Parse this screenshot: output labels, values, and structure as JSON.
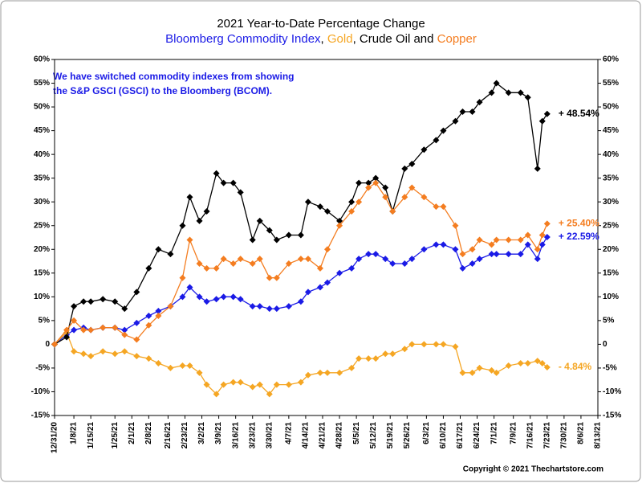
{
  "chart_data": {
    "type": "line",
    "title": "2021 Year-to-Date Percentage Change",
    "subtitle_separators": [
      ", ",
      ", ",
      " and "
    ],
    "annotation": [
      "We have switched commodity indexes from showing",
      "the S&P GSCI (GSCI) to the Bloomberg (BCOM)."
    ],
    "annotation_color": "#1a1ae6",
    "copyright": "Copyright © 2021 Thechartstore.com",
    "x": [
      "12/31/20",
      "1/5/21",
      "1/8/21",
      "1/12/21",
      "1/15/21",
      "1/20/21",
      "1/25/21",
      "1/29/21",
      "2/3/21",
      "2/8/21",
      "2/12/21",
      "2/17/21",
      "2/22/21",
      "2/25/21",
      "3/1/21",
      "3/4/21",
      "3/8/21",
      "3/11/21",
      "3/15/21",
      "3/18/21",
      "3/23/21",
      "3/26/21",
      "3/30/21",
      "4/2/21",
      "4/7/21",
      "4/12/21",
      "4/15/21",
      "4/20/21",
      "4/23/21",
      "4/28/21",
      "5/3/21",
      "5/6/21",
      "5/10/21",
      "5/13/21",
      "5/17/21",
      "5/20/21",
      "5/25/21",
      "5/28/21",
      "6/2/21",
      "6/7/21",
      "6/10/21",
      "6/15/21",
      "6/18/21",
      "6/22/21",
      "6/25/21",
      "6/30/21",
      "7/2/21",
      "7/7/21",
      "7/12/21",
      "7/15/21",
      "7/19/21",
      "7/21/21",
      "7/23/21"
    ],
    "series": [
      {
        "name": "Bloomberg Commodity Index",
        "color": "#1a1ae6",
        "end_label": "+ 22.59%",
        "values": [
          0,
          2,
          3,
          3.5,
          3,
          3.5,
          3.5,
          3,
          4.5,
          6,
          7,
          8,
          10,
          12,
          10,
          9,
          9.5,
          10,
          10,
          9.5,
          8,
          8,
          7.5,
          7.5,
          8,
          9,
          11,
          12,
          13,
          15,
          16,
          18,
          19,
          19,
          18,
          17,
          17,
          18,
          20,
          21,
          21,
          20,
          16,
          17,
          18,
          19,
          19,
          19,
          19,
          21,
          18,
          21,
          22.59
        ]
      },
      {
        "name": "Gold",
        "color": "#f5a623",
        "end_label": "- 4.84%",
        "values": [
          0,
          2.5,
          -1.5,
          -2,
          -2.5,
          -1.5,
          -2,
          -1.5,
          -2.5,
          -3,
          -4,
          -5,
          -4.5,
          -4.5,
          -6,
          -8.5,
          -10.5,
          -8.5,
          -8,
          -8,
          -9,
          -8.5,
          -10.5,
          -8.5,
          -8.5,
          -8,
          -6.5,
          -6,
          -6,
          -6,
          -5,
          -3,
          -3,
          -3,
          -2,
          -2,
          -1,
          0,
          0,
          0,
          0,
          -0.5,
          -6,
          -6,
          -5,
          -5.5,
          -6,
          -4.5,
          -4,
          -4,
          -3.5,
          -4,
          -4.84
        ]
      },
      {
        "name": "Crude Oil",
        "color": "#000000",
        "end_label": "+ 48.54%",
        "values": [
          0,
          1.5,
          8,
          9,
          9,
          9.5,
          9,
          7.5,
          11,
          16,
          20,
          19,
          25,
          31,
          26,
          28,
          36,
          34,
          34,
          32,
          22,
          26,
          24,
          22,
          23,
          23,
          30,
          29,
          28,
          26,
          30,
          34,
          34,
          35,
          33,
          28,
          37,
          38,
          41,
          43,
          45,
          47,
          49,
          49,
          51,
          53,
          55,
          53,
          53,
          52,
          37,
          47,
          48.54
        ]
      },
      {
        "name": "Copper",
        "color": "#f47d20",
        "end_label": "+ 25.40%",
        "values": [
          0,
          3,
          5,
          3,
          3,
          3.5,
          3.5,
          2,
          1,
          4,
          6,
          8,
          14,
          22,
          17,
          16,
          16,
          18,
          17,
          18,
          17,
          18,
          14,
          14,
          17,
          18,
          18,
          16,
          20,
          25,
          28,
          30,
          33,
          34,
          31,
          28,
          31,
          33,
          31,
          29,
          29,
          25,
          19,
          20,
          22,
          21,
          22,
          22,
          22,
          23,
          20,
          23,
          25.4
        ]
      }
    ],
    "xticks": [
      "12/31/20",
      "1/8/21",
      "1/15/21",
      "1/25/21",
      "2/1/21",
      "2/8/21",
      "2/16/21",
      "2/23/21",
      "3/2/21",
      "3/9/21",
      "3/16/21",
      "3/23/21",
      "3/30/21",
      "4/7/21",
      "4/14/21",
      "4/21/21",
      "4/28/21",
      "5/5/21",
      "5/12/21",
      "5/19/21",
      "5/26/21",
      "6/3/21",
      "6/10/21",
      "6/17/21",
      "6/24/21",
      "7/1/21",
      "7/9/21",
      "7/16/21",
      "7/23/21",
      "7/30/21",
      "8/6/21",
      "8/13/21"
    ],
    "xlim": [
      "12/31/20",
      "8/13/21"
    ],
    "ylim": [
      -15,
      60
    ],
    "yticks": [
      {
        "value": -15,
        "label": "-15%"
      },
      {
        "value": -10,
        "label": "-10%"
      },
      {
        "value": -5,
        "label": "-5%"
      },
      0,
      {
        "value": 5,
        "label": "5%"
      },
      {
        "value": 10,
        "label": "10%"
      },
      {
        "value": 15,
        "label": "15%"
      },
      {
        "value": 20,
        "label": "20%"
      },
      {
        "value": 25,
        "label": "25%"
      },
      {
        "value": 30,
        "label": "30%"
      },
      {
        "value": 35,
        "label": "35%"
      },
      {
        "value": 40,
        "label": "40%"
      },
      {
        "value": 45,
        "label": "45%"
      },
      {
        "value": 50,
        "label": "50%"
      },
      {
        "value": 55,
        "label": "55%"
      },
      {
        "value": 60,
        "label": "60%"
      }
    ],
    "y2lim": [
      -15,
      60
    ],
    "y2ticks": [
      {
        "value": -15,
        "label": "-15%"
      },
      {
        "value": -10,
        "label": "-10%"
      },
      {
        "value": -5,
        "label": "-5%"
      },
      0,
      {
        "value": 5,
        "label": "5%"
      },
      {
        "value": 10,
        "label": "10%"
      },
      {
        "value": 15,
        "label": "15%"
      },
      {
        "value": 20,
        "label": "20%"
      },
      {
        "value": 25,
        "label": "25%"
      },
      {
        "value": 30,
        "label": "30%"
      },
      {
        "value": 35,
        "label": "35%"
      },
      {
        "value": 40,
        "label": "40%"
      },
      {
        "value": 45,
        "label": "45%"
      },
      {
        "value": 50,
        "label": "50%"
      },
      {
        "value": 55,
        "label": "55%"
      },
      {
        "value": 60,
        "label": "60%"
      }
    ],
    "grid": false
  }
}
